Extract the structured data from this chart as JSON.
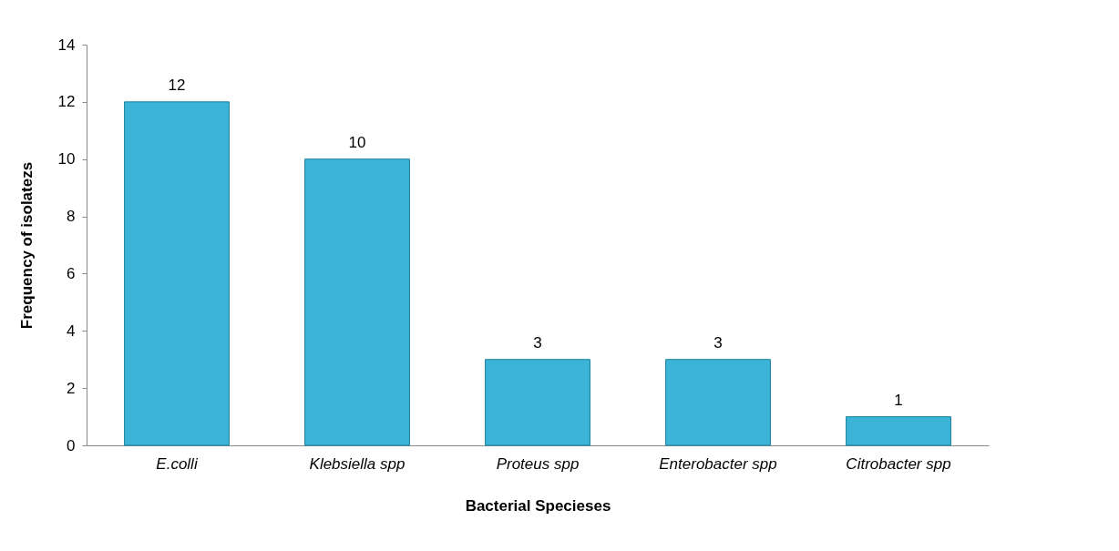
{
  "chart_data": {
    "type": "bar",
    "xlabel": "Bacterial Specieses",
    "ylabel": "Frequency of isolatezs",
    "categories": [
      "E.colli",
      "Klebsiella spp",
      "Proteus spp",
      "Enterobacter spp",
      "Citrobacter spp"
    ],
    "values": [
      12,
      10,
      3,
      3,
      1
    ],
    "color": "#3bb4d8",
    "ylim": [
      0,
      14
    ],
    "yticks": [
      0,
      2,
      4,
      6,
      8,
      10,
      12,
      14
    ],
    "grid": false,
    "data_labels": true
  }
}
